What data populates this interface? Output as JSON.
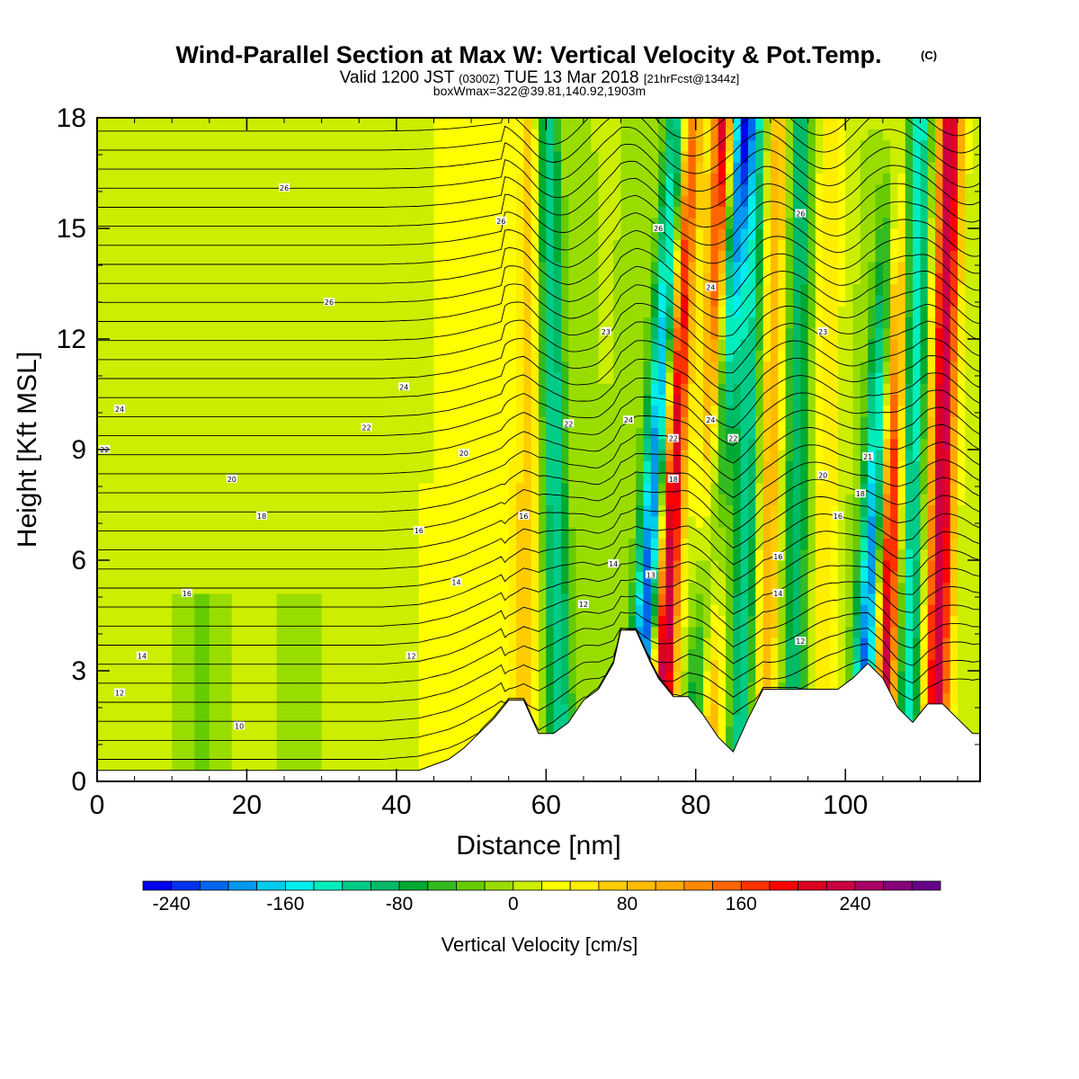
{
  "title": "Wind-Parallel Section at Max W: Vertical Velocity & Pot.Temp.",
  "title_mark": "(C)",
  "subtitle": {
    "valid": "Valid 1200 JST",
    "utc": "(0300Z)",
    "date": "TUE 13 Mar 2018",
    "forecast": "[21hrFcst@1344z]"
  },
  "subtitle2": "boxWmax=322@39.81,140.92,1903m",
  "chart_data": {
    "type": "heatmap",
    "xlabel": "Distance [nm]",
    "ylabel": "Height [Kft MSL]",
    "xlim": [
      0,
      118
    ],
    "ylim": [
      0,
      18
    ],
    "x_ticks": [
      0,
      20,
      40,
      60,
      80,
      100
    ],
    "x_tick_labels": [
      "0",
      "20",
      "40",
      "60",
      "80",
      "100"
    ],
    "y_ticks": [
      0,
      3,
      6,
      9,
      12,
      15,
      18
    ],
    "y_tick_labels": [
      "0",
      "3",
      "6",
      "9",
      "12",
      "15",
      "18"
    ],
    "colorbar": {
      "title": "Vertical Velocity [cm/s]",
      "tick_values": [
        -240,
        -160,
        -80,
        0,
        80,
        160,
        240
      ],
      "tick_labels": [
        "-240",
        "-160",
        "-80",
        "0",
        "80",
        "160",
        "240"
      ],
      "levels": [
        -260,
        -240,
        -220,
        -200,
        -180,
        -160,
        -140,
        -120,
        -100,
        -80,
        -60,
        -40,
        -20,
        0,
        20,
        40,
        60,
        80,
        100,
        120,
        140,
        160,
        180,
        200,
        220,
        240,
        260,
        280,
        300
      ],
      "colors": [
        "#0000ee",
        "#0033ee",
        "#0066ee",
        "#0099ee",
        "#00ccee",
        "#00eeee",
        "#00eebb",
        "#00cc88",
        "#00bb66",
        "#00aa33",
        "#33bb22",
        "#66cc00",
        "#99dd00",
        "#ccee00",
        "#ffff00",
        "#ffee00",
        "#ffcc00",
        "#ffbb00",
        "#ffaa00",
        "#ff8800",
        "#ff6600",
        "#ff3300",
        "#ff0000",
        "#dd0022",
        "#cc0044",
        "#aa0066",
        "#880077",
        "#660088"
      ]
    },
    "updraft_bands": [
      {
        "x_bottom": 57,
        "x_top": 58,
        "peak_cm_s": 80
      },
      {
        "x_bottom": 75,
        "x_top": 79,
        "peak_cm_s": 260
      },
      {
        "x_bottom": 81,
        "x_top": 84,
        "peak_cm_s": 260
      },
      {
        "x_bottom": 89,
        "x_top": 91,
        "peak_cm_s": 100
      },
      {
        "x_bottom": 97,
        "x_top": 98,
        "peak_cm_s": 60
      },
      {
        "x_bottom": 105,
        "x_top": 107,
        "peak_cm_s": 260
      },
      {
        "x_bottom": 112,
        "x_top": 114,
        "peak_cm_s": 240
      }
    ],
    "downdraft_bands": [
      {
        "x_bottom": 62,
        "x_top": 60,
        "peak_cm_s": -120
      },
      {
        "x_bottom": 72,
        "x_top": 78,
        "peak_cm_s": -240
      },
      {
        "x_bottom": 80,
        "x_top": 86,
        "peak_cm_s": -260
      },
      {
        "x_bottom": 86,
        "x_top": 88,
        "peak_cm_s": -120
      },
      {
        "x_bottom": 93,
        "x_top": 94,
        "peak_cm_s": -100
      },
      {
        "x_bottom": 102,
        "x_top": 107,
        "peak_cm_s": -240
      },
      {
        "x_bottom": 108,
        "x_top": 110,
        "peak_cm_s": -140
      }
    ],
    "terrain": {
      "x": [
        0,
        43,
        47,
        49,
        51,
        53,
        55,
        57,
        59,
        61,
        63,
        65,
        67,
        69,
        70,
        72,
        74,
        75,
        77,
        79,
        81,
        83,
        85,
        87,
        89,
        91,
        93,
        95,
        97,
        99,
        101,
        103,
        105,
        107,
        109,
        111,
        113,
        115,
        117,
        118
      ],
      "height_kft": [
        0.3,
        0.3,
        0.6,
        0.9,
        1.3,
        1.7,
        2.2,
        2.2,
        1.3,
        1.3,
        1.6,
        2.2,
        2.5,
        3.2,
        4.1,
        4.1,
        3.2,
        2.8,
        2.3,
        2.3,
        1.8,
        1.2,
        0.8,
        1.7,
        2.5,
        2.5,
        2.5,
        2.5,
        2.5,
        2.5,
        2.8,
        3.2,
        2.8,
        2.0,
        1.6,
        2.1,
        2.1,
        1.7,
        1.3,
        1.3
      ]
    },
    "theta_contour_labels": [
      {
        "x": 25,
        "y": 16.1,
        "text": "26"
      },
      {
        "x": 54,
        "y": 15.2,
        "text": "26"
      },
      {
        "x": 75,
        "y": 15.0,
        "text": "26"
      },
      {
        "x": 94,
        "y": 15.4,
        "text": "26"
      },
      {
        "x": 31,
        "y": 13.0,
        "text": "26"
      },
      {
        "x": 82,
        "y": 13.4,
        "text": "24"
      },
      {
        "x": 68,
        "y": 12.2,
        "text": "23"
      },
      {
        "x": 97,
        "y": 12.2,
        "text": "23"
      },
      {
        "x": 3,
        "y": 10.1,
        "text": "24"
      },
      {
        "x": 41,
        "y": 10.7,
        "text": "24"
      },
      {
        "x": 71,
        "y": 9.8,
        "text": "24"
      },
      {
        "x": 82,
        "y": 9.8,
        "text": "24"
      },
      {
        "x": 1,
        "y": 9.0,
        "text": "22"
      },
      {
        "x": 36,
        "y": 9.6,
        "text": "22"
      },
      {
        "x": 63,
        "y": 9.7,
        "text": "22"
      },
      {
        "x": 77,
        "y": 9.3,
        "text": "22"
      },
      {
        "x": 85,
        "y": 9.3,
        "text": "22"
      },
      {
        "x": 49,
        "y": 8.9,
        "text": "20"
      },
      {
        "x": 103,
        "y": 8.8,
        "text": "21"
      },
      {
        "x": 18,
        "y": 8.2,
        "text": "20"
      },
      {
        "x": 97,
        "y": 8.3,
        "text": "20"
      },
      {
        "x": 77,
        "y": 8.2,
        "text": "18"
      },
      {
        "x": 102,
        "y": 7.8,
        "text": "18"
      },
      {
        "x": 22,
        "y": 7.2,
        "text": "18"
      },
      {
        "x": 57,
        "y": 7.2,
        "text": "16"
      },
      {
        "x": 99,
        "y": 7.2,
        "text": "16"
      },
      {
        "x": 43,
        "y": 6.8,
        "text": "16"
      },
      {
        "x": 91,
        "y": 6.1,
        "text": "16"
      },
      {
        "x": 69,
        "y": 5.9,
        "text": "14"
      },
      {
        "x": 74,
        "y": 5.6,
        "text": "13"
      },
      {
        "x": 12,
        "y": 5.1,
        "text": "16"
      },
      {
        "x": 48,
        "y": 5.4,
        "text": "14"
      },
      {
        "x": 91,
        "y": 5.1,
        "text": "14"
      },
      {
        "x": 65,
        "y": 4.8,
        "text": "12"
      },
      {
        "x": 94,
        "y": 3.8,
        "text": "12"
      },
      {
        "x": 6,
        "y": 3.4,
        "text": "14"
      },
      {
        "x": 42,
        "y": 3.4,
        "text": "12"
      },
      {
        "x": 3,
        "y": 2.4,
        "text": "12"
      },
      {
        "x": 19,
        "y": 1.5,
        "text": "10"
      }
    ]
  }
}
